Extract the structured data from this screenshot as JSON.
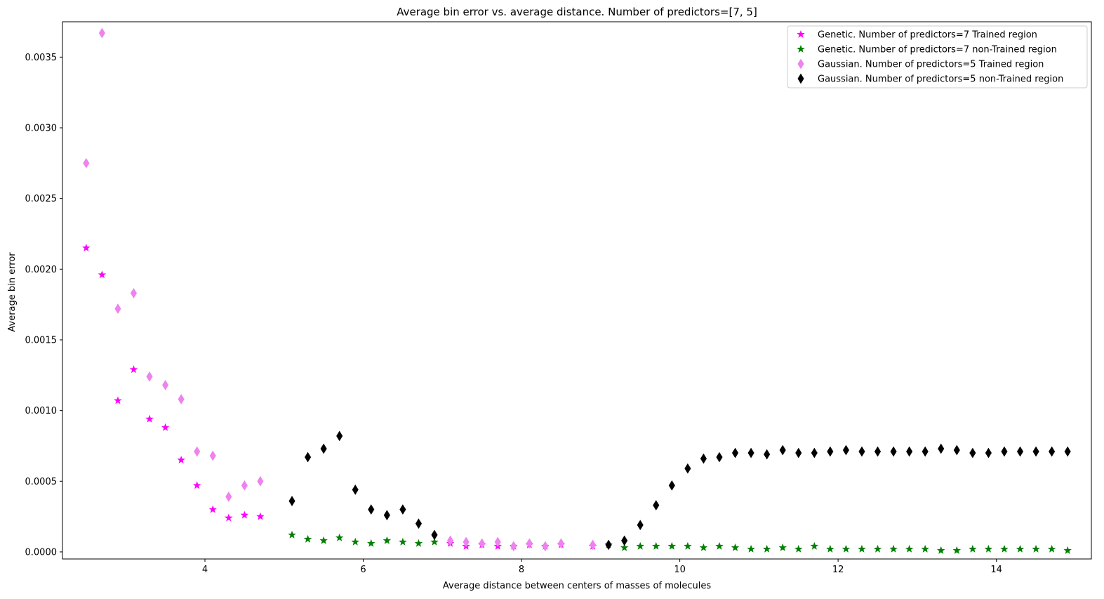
{
  "chart_data": {
    "type": "scatter",
    "title": "Average bin error vs. average distance. Number of predictors=[7, 5]",
    "xlabel": "Average distance between centers of masses of molecules",
    "ylabel": "Average bin error",
    "xlim": [
      2.2,
      15.2
    ],
    "ylim": [
      -5e-05,
      0.00375
    ],
    "xticks": [
      4,
      6,
      8,
      10,
      12,
      14
    ],
    "xtick_labels": [
      "4",
      "6",
      "8",
      "10",
      "12",
      "14"
    ],
    "yticks": [
      0.0,
      0.0005,
      0.001,
      0.0015,
      0.002,
      0.0025,
      0.003,
      0.0035
    ],
    "ytick_labels": [
      "0.0000",
      "0.0005",
      "0.0010",
      "0.0015",
      "0.0020",
      "0.0025",
      "0.0030",
      "0.0035"
    ],
    "grid": false,
    "legend_position": "top-right",
    "series": [
      {
        "name": "Genetic. Number of predictors=7 Trained region",
        "marker": "star",
        "color": "#ff00ff",
        "points": [
          [
            2.5,
            0.00215
          ],
          [
            2.7,
            0.00196
          ],
          [
            2.9,
            0.00107
          ],
          [
            3.1,
            0.00129
          ],
          [
            3.3,
            0.00094
          ],
          [
            3.5,
            0.00088
          ],
          [
            3.7,
            0.00065
          ],
          [
            3.9,
            0.00047
          ],
          [
            4.1,
            0.0003
          ],
          [
            4.3,
            0.00024
          ],
          [
            4.5,
            0.00026
          ],
          [
            4.7,
            0.00025
          ],
          [
            7.1,
            6e-05
          ],
          [
            7.3,
            4e-05
          ],
          [
            7.5,
            5e-05
          ],
          [
            7.7,
            4e-05
          ],
          [
            7.9,
            4e-05
          ],
          [
            8.1,
            5e-05
          ],
          [
            8.3,
            4e-05
          ],
          [
            8.5,
            5e-05
          ],
          [
            8.9,
            4e-05
          ]
        ]
      },
      {
        "name": "Genetic. Number of predictors=7 non-Trained region",
        "marker": "star",
        "color": "#008000",
        "points": [
          [
            5.1,
            0.00012
          ],
          [
            5.3,
            9e-05
          ],
          [
            5.5,
            8e-05
          ],
          [
            5.7,
            0.0001
          ],
          [
            5.9,
            7e-05
          ],
          [
            6.1,
            6e-05
          ],
          [
            6.3,
            8e-05
          ],
          [
            6.5,
            7e-05
          ],
          [
            6.7,
            6e-05
          ],
          [
            6.9,
            7e-05
          ],
          [
            9.1,
            5e-05
          ],
          [
            9.3,
            3e-05
          ],
          [
            9.5,
            4e-05
          ],
          [
            9.7,
            4e-05
          ],
          [
            9.9,
            4e-05
          ],
          [
            10.1,
            4e-05
          ],
          [
            10.3,
            3e-05
          ],
          [
            10.5,
            4e-05
          ],
          [
            10.7,
            3e-05
          ],
          [
            10.9,
            2e-05
          ],
          [
            11.1,
            2e-05
          ],
          [
            11.3,
            3e-05
          ],
          [
            11.5,
            2e-05
          ],
          [
            11.7,
            4e-05
          ],
          [
            11.9,
            2e-05
          ],
          [
            12.1,
            2e-05
          ],
          [
            12.3,
            2e-05
          ],
          [
            12.5,
            2e-05
          ],
          [
            12.7,
            2e-05
          ],
          [
            12.9,
            2e-05
          ],
          [
            13.1,
            2e-05
          ],
          [
            13.3,
            1e-05
          ],
          [
            13.5,
            1e-05
          ],
          [
            13.7,
            2e-05
          ],
          [
            13.9,
            2e-05
          ],
          [
            14.1,
            2e-05
          ],
          [
            14.3,
            2e-05
          ],
          [
            14.5,
            2e-05
          ],
          [
            14.7,
            2e-05
          ],
          [
            14.9,
            1e-05
          ]
        ]
      },
      {
        "name": "Gaussian. Number of predictors=5 Trained region",
        "marker": "thin_diamond",
        "color": "#ee82ee",
        "points": [
          [
            2.5,
            0.00275
          ],
          [
            2.7,
            0.00367
          ],
          [
            2.9,
            0.00172
          ],
          [
            3.1,
            0.00183
          ],
          [
            3.3,
            0.00124
          ],
          [
            3.5,
            0.00118
          ],
          [
            3.7,
            0.00108
          ],
          [
            3.9,
            0.00071
          ],
          [
            4.1,
            0.00068
          ],
          [
            4.3,
            0.00039
          ],
          [
            4.5,
            0.00047
          ],
          [
            4.7,
            0.0005
          ],
          [
            7.1,
            8e-05
          ],
          [
            7.3,
            7e-05
          ],
          [
            7.5,
            6e-05
          ],
          [
            7.7,
            7e-05
          ],
          [
            7.9,
            4e-05
          ],
          [
            8.1,
            6e-05
          ],
          [
            8.3,
            4e-05
          ],
          [
            8.5,
            6e-05
          ],
          [
            8.9,
            5e-05
          ]
        ]
      },
      {
        "name": "Gaussian. Number of predictors=5 non-Trained region",
        "marker": "thin_diamond",
        "color": "#000000",
        "points": [
          [
            5.1,
            0.00036
          ],
          [
            5.3,
            0.00067
          ],
          [
            5.5,
            0.00073
          ],
          [
            5.7,
            0.00082
          ],
          [
            5.9,
            0.00044
          ],
          [
            6.1,
            0.0003
          ],
          [
            6.3,
            0.00026
          ],
          [
            6.5,
            0.0003
          ],
          [
            6.7,
            0.0002
          ],
          [
            6.9,
            0.00012
          ],
          [
            9.1,
            5e-05
          ],
          [
            9.3,
            8e-05
          ],
          [
            9.5,
            0.00019
          ],
          [
            9.7,
            0.00033
          ],
          [
            9.9,
            0.00047
          ],
          [
            10.1,
            0.00059
          ],
          [
            10.3,
            0.00066
          ],
          [
            10.5,
            0.00067
          ],
          [
            10.7,
            0.0007
          ],
          [
            10.9,
            0.0007
          ],
          [
            11.1,
            0.00069
          ],
          [
            11.3,
            0.00072
          ],
          [
            11.5,
            0.0007
          ],
          [
            11.7,
            0.0007
          ],
          [
            11.9,
            0.00071
          ],
          [
            12.1,
            0.00072
          ],
          [
            12.3,
            0.00071
          ],
          [
            12.5,
            0.00071
          ],
          [
            12.7,
            0.00071
          ],
          [
            12.9,
            0.00071
          ],
          [
            13.1,
            0.00071
          ],
          [
            13.3,
            0.00073
          ],
          [
            13.5,
            0.00072
          ],
          [
            13.7,
            0.0007
          ],
          [
            13.9,
            0.0007
          ],
          [
            14.1,
            0.00071
          ],
          [
            14.3,
            0.00071
          ],
          [
            14.5,
            0.00071
          ],
          [
            14.7,
            0.00071
          ],
          [
            14.9,
            0.00071
          ]
        ]
      }
    ]
  }
}
